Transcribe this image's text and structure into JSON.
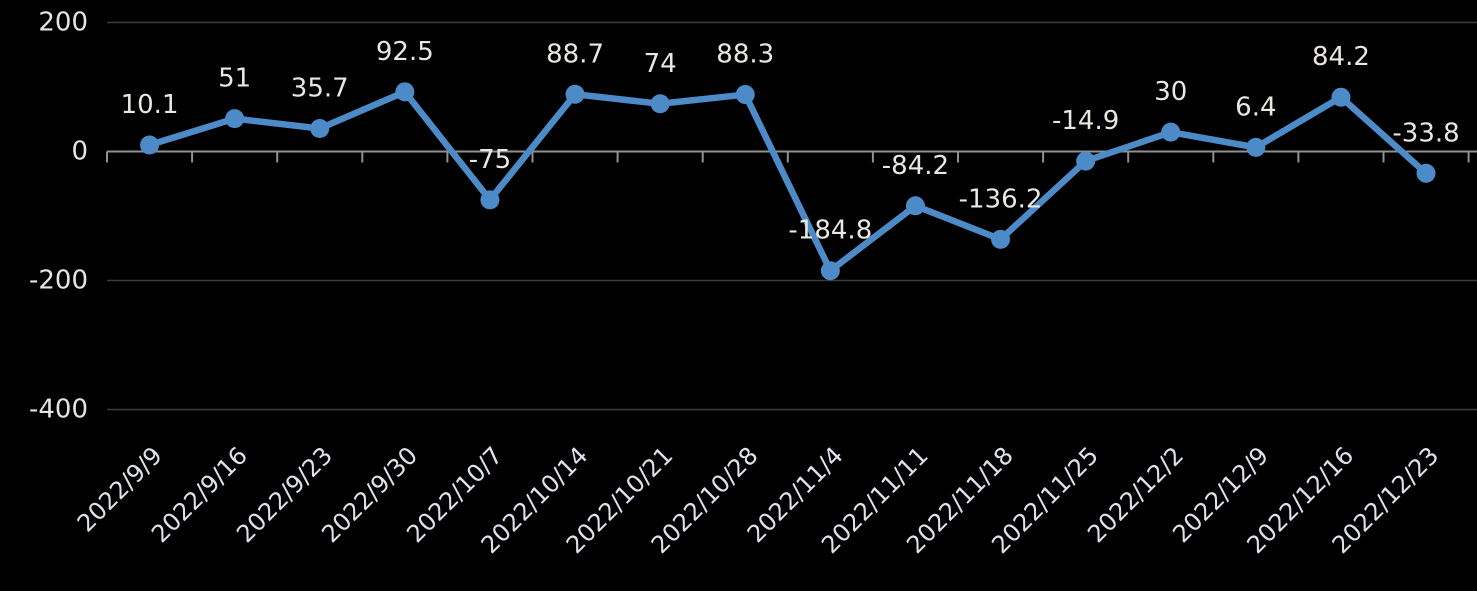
{
  "chart_data": {
    "type": "line",
    "categories": [
      "2022/9/9",
      "2022/9/16",
      "2022/9/23",
      "2022/9/30",
      "2022/10/7",
      "2022/10/14",
      "2022/10/21",
      "2022/10/28",
      "2022/11/4",
      "2022/11/11",
      "2022/11/18",
      "2022/11/25",
      "2022/12/2",
      "2022/12/9",
      "2022/12/16",
      "2022/12/23"
    ],
    "values": [
      10.1,
      51,
      35.7,
      92.5,
      -75,
      88.7,
      74,
      88.3,
      -184.8,
      -84.2,
      -136.2,
      -14.9,
      30,
      6.4,
      84.2,
      -33.8
    ],
    "data_labels": [
      "10.1",
      "51",
      "35.7",
      "92.5",
      "-75",
      "88.7",
      "74",
      "88.3",
      "-184.8",
      "-84.2",
      "-136.2",
      "-14.9",
      "30",
      "6.4",
      "84.2",
      "-33.8"
    ],
    "title": "",
    "xlabel": "",
    "ylabel": "",
    "y_ticks": [
      200,
      0,
      -200,
      -400
    ],
    "y_tick_labels": [
      "200",
      "0",
      "-200",
      "-400"
    ],
    "ylim": [
      -450,
      210
    ],
    "grid": true,
    "legend": "none",
    "marker": "circle",
    "colors": {
      "background": "#000000",
      "series_line": "#4C8BC8",
      "marker_fill": "#4C8BC8",
      "data_label_text": "#EAE7E1",
      "y_axis_label_text": "#E4E4E4",
      "x_axis_label_text": "#DDE3EC",
      "gridline": "#3C3C3C",
      "axis_line": "#919191"
    }
  }
}
